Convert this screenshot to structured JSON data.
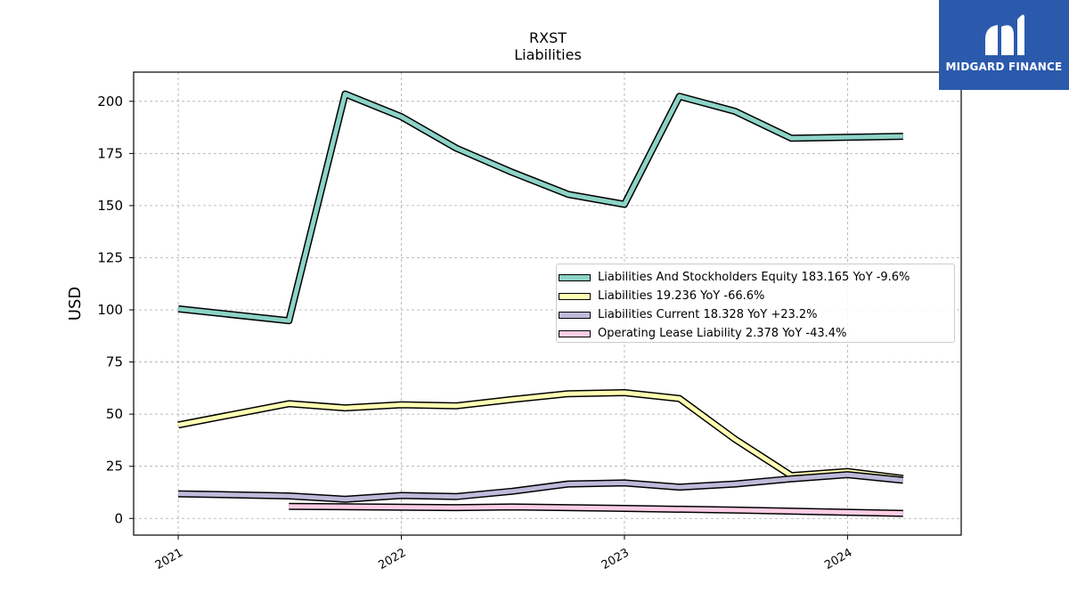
{
  "chart_data": {
    "type": "line",
    "title": "RXST",
    "subtitle": "Liabilities",
    "ylabel": "USD",
    "xlabel": "",
    "ylim": [
      -8,
      214
    ],
    "x_ticks": [
      "2021",
      "2022",
      "2023",
      "2024"
    ],
    "y_ticks": [
      0,
      25,
      50,
      75,
      100,
      125,
      150,
      175,
      200
    ],
    "grid": true,
    "legend_position": "center-right",
    "series": [
      {
        "name": "Liabilities And Stockholders Equity",
        "legend_label": "Liabilities And Stockholders Equity  183.165 YoY -9.6%",
        "color": "#8dd3c7",
        "points": [
          [
            "2021-01-01",
            100.5
          ],
          [
            "2021-07-01",
            94.8
          ],
          [
            "2021-10-01",
            203.5
          ],
          [
            "2022-01-01",
            192.6
          ],
          [
            "2022-04-01",
            177.5
          ],
          [
            "2022-07-01",
            166.0
          ],
          [
            "2022-10-01",
            155.4
          ],
          [
            "2023-01-01",
            150.6
          ],
          [
            "2023-04-01",
            202.4
          ],
          [
            "2023-07-01",
            195.2
          ],
          [
            "2023-10-01",
            182.3
          ],
          [
            "2024-04-01",
            183.2
          ]
        ]
      },
      {
        "name": "Liabilities",
        "legend_label": "Liabilities  19.236 YoY -66.6%",
        "color": "#ffffb3",
        "points": [
          [
            "2021-01-01",
            44.8
          ],
          [
            "2021-07-01",
            55.0
          ],
          [
            "2021-10-01",
            53.0
          ],
          [
            "2022-01-01",
            54.5
          ],
          [
            "2022-04-01",
            54.0
          ],
          [
            "2022-07-01",
            57.0
          ],
          [
            "2022-10-01",
            59.8
          ],
          [
            "2023-01-01",
            60.3
          ],
          [
            "2023-04-01",
            57.5
          ],
          [
            "2023-07-01",
            38.0
          ],
          [
            "2023-10-01",
            20.5
          ],
          [
            "2024-01-01",
            22.5
          ],
          [
            "2024-04-01",
            19.2
          ]
        ]
      },
      {
        "name": "Liabilities Current",
        "legend_label": "Liabilities Current  18.328 YoY +23.2%",
        "color": "#bebada",
        "points": [
          [
            "2021-01-01",
            11.8
          ],
          [
            "2021-07-01",
            10.8
          ],
          [
            "2021-10-01",
            9.2
          ],
          [
            "2022-01-01",
            11.0
          ],
          [
            "2022-04-01",
            10.5
          ],
          [
            "2022-07-01",
            13.0
          ],
          [
            "2022-10-01",
            16.5
          ],
          [
            "2023-01-01",
            17.0
          ],
          [
            "2023-04-01",
            15.0
          ],
          [
            "2023-07-01",
            16.5
          ],
          [
            "2023-10-01",
            19.0
          ],
          [
            "2024-01-01",
            21.0
          ],
          [
            "2024-04-01",
            18.3
          ]
        ]
      },
      {
        "name": "Operating Lease Liability",
        "legend_label": "Operating Lease Liability  2.378 YoY -43.4%",
        "color": "#fccde5",
        "points": [
          [
            "2021-07-01",
            5.8
          ],
          [
            "2022-04-01",
            5.2
          ],
          [
            "2022-07-01",
            5.5
          ],
          [
            "2023-01-01",
            4.8
          ],
          [
            "2023-07-01",
            4.0
          ],
          [
            "2024-04-01",
            2.4
          ]
        ]
      }
    ]
  },
  "logo": {
    "text": "MIDGARD FINANCE"
  }
}
